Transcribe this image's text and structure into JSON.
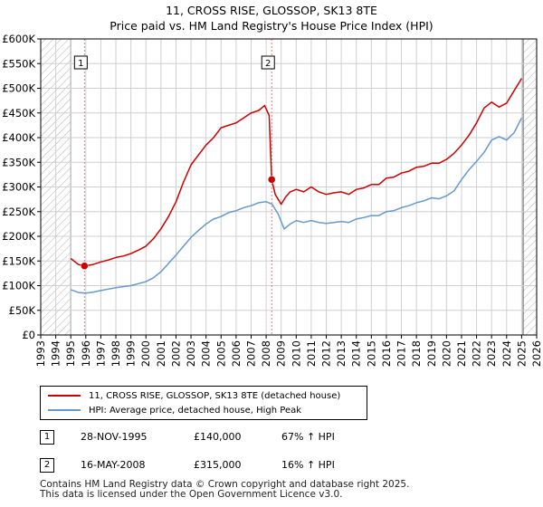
{
  "title_line1": "11, CROSS RISE, GLOSSOP, SK13 8TE",
  "title_line2": "Price paid vs. HM Land Registry's House Price Index (HPI)",
  "colors": {
    "property": "#cc0000",
    "hpi": "#6699cc",
    "marker": "#cc0000",
    "grid": "#d0d0d0",
    "hatch": "#a0a0a0"
  },
  "legend": {
    "property": "11, CROSS RISE, GLOSSOP, SK13 8TE (detached house)",
    "hpi": "HPI: Average price, detached house, High Peak"
  },
  "transactions": [
    {
      "num": "1",
      "date": "28-NOV-1995",
      "price": "£140,000",
      "hpi_change": "67% ↑ HPI"
    },
    {
      "num": "2",
      "date": "16-MAY-2008",
      "price": "£315,000",
      "hpi_change": "16% ↑ HPI"
    }
  ],
  "footer": {
    "line1": "Contains HM Land Registry data © Crown copyright and database right 2025.",
    "line2": "This data is licensed under the Open Government Licence v3.0."
  },
  "chart_data": {
    "type": "line",
    "xlim": [
      1993,
      2026
    ],
    "ylim": [
      0,
      600000
    ],
    "xticks": [
      "1993",
      "1994",
      "1995",
      "1996",
      "1997",
      "1998",
      "1999",
      "2000",
      "2001",
      "2002",
      "2003",
      "2004",
      "2005",
      "2006",
      "2007",
      "2008",
      "2009",
      "2010",
      "2011",
      "2012",
      "2013",
      "2014",
      "2015",
      "2016",
      "2017",
      "2018",
      "2019",
      "2020",
      "2021",
      "2022",
      "2023",
      "2024",
      "2025",
      "2026"
    ],
    "yticks": [
      {
        "value": 0,
        "label": "£0"
      },
      {
        "value": 50000,
        "label": "£50K"
      },
      {
        "value": 100000,
        "label": "£100K"
      },
      {
        "value": 150000,
        "label": "£150K"
      },
      {
        "value": 200000,
        "label": "£200K"
      },
      {
        "value": 250000,
        "label": "£250K"
      },
      {
        "value": 300000,
        "label": "£300K"
      },
      {
        "value": 350000,
        "label": "£350K"
      },
      {
        "value": 400000,
        "label": "£400K"
      },
      {
        "value": 450000,
        "label": "£450K"
      },
      {
        "value": 500000,
        "label": "£500K"
      },
      {
        "value": 550000,
        "label": "£550K"
      },
      {
        "value": 600000,
        "label": "£600K"
      }
    ],
    "hatched_ranges": [
      [
        1993,
        1995.0
      ],
      [
        2025.1,
        2026
      ]
    ],
    "sale_markers": [
      {
        "label": "1",
        "x": 1995.91,
        "y": 140000
      },
      {
        "label": "2",
        "x": 2008.37,
        "y": 315000
      }
    ],
    "series": [
      {
        "name": "property",
        "x": [
          1995.0,
          1995.5,
          1995.91,
          1996.5,
          1997,
          1997.5,
          1998,
          1998.5,
          1999,
          1999.5,
          2000,
          2000.5,
          2001,
          2001.5,
          2002,
          2002.5,
          2003,
          2003.5,
          2004,
          2004.5,
          2005,
          2005.5,
          2006,
          2006.5,
          2007,
          2007.5,
          2007.9,
          2008.2,
          2008.37,
          2008.6,
          2009,
          2009.3,
          2009.6,
          2010,
          2010.5,
          2011,
          2011.5,
          2012,
          2012.5,
          2013,
          2013.5,
          2014,
          2014.5,
          2015,
          2015.5,
          2016,
          2016.5,
          2017,
          2017.5,
          2018,
          2018.5,
          2019,
          2019.5,
          2020,
          2020.5,
          2021,
          2021.5,
          2022,
          2022.5,
          2023,
          2023.5,
          2024,
          2024.5,
          2025.0
        ],
        "y": [
          155000,
          143000,
          140000,
          143000,
          148000,
          152000,
          157000,
          160000,
          165000,
          172000,
          180000,
          195000,
          215000,
          240000,
          270000,
          310000,
          345000,
          365000,
          385000,
          400000,
          420000,
          425000,
          430000,
          440000,
          450000,
          455000,
          465000,
          445000,
          315000,
          285000,
          265000,
          280000,
          290000,
          295000,
          290000,
          300000,
          290000,
          285000,
          288000,
          290000,
          285000,
          295000,
          298000,
          305000,
          305000,
          318000,
          320000,
          328000,
          332000,
          340000,
          342000,
          348000,
          348000,
          356000,
          368000,
          385000,
          405000,
          430000,
          460000,
          472000,
          462000,
          470000,
          495000,
          520000
        ]
      },
      {
        "name": "hpi",
        "x": [
          1995.0,
          1995.5,
          1996,
          1996.5,
          1997,
          1997.5,
          1998,
          1998.5,
          1999,
          1999.5,
          2000,
          2000.5,
          2001,
          2001.5,
          2002,
          2002.5,
          2003,
          2003.5,
          2004,
          2004.5,
          2005,
          2005.5,
          2006,
          2006.5,
          2007,
          2007.5,
          2008,
          2008.4,
          2008.8,
          2009.2,
          2009.6,
          2010,
          2010.5,
          2011,
          2011.5,
          2012,
          2012.5,
          2013,
          2013.5,
          2014,
          2014.5,
          2015,
          2015.5,
          2016,
          2016.5,
          2017,
          2017.5,
          2018,
          2018.5,
          2019,
          2019.5,
          2020,
          2020.5,
          2021,
          2021.5,
          2022,
          2022.5,
          2023,
          2023.5,
          2024,
          2024.5,
          2025.0
        ],
        "y": [
          92000,
          86000,
          85000,
          87000,
          90000,
          93000,
          96000,
          98000,
          100000,
          104000,
          108000,
          116000,
          128000,
          145000,
          162000,
          180000,
          198000,
          212000,
          225000,
          235000,
          240000,
          248000,
          252000,
          258000,
          262000,
          268000,
          270000,
          265000,
          245000,
          215000,
          225000,
          232000,
          228000,
          232000,
          228000,
          226000,
          228000,
          230000,
          228000,
          235000,
          238000,
          242000,
          242000,
          250000,
          252000,
          258000,
          262000,
          268000,
          272000,
          278000,
          276000,
          282000,
          292000,
          315000,
          335000,
          352000,
          370000,
          395000,
          402000,
          395000,
          410000,
          440000
        ]
      }
    ]
  }
}
